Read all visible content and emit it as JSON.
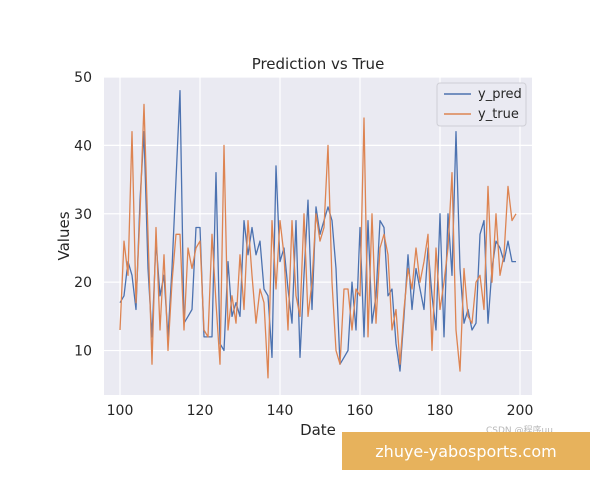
{
  "chart_data": {
    "type": "line",
    "title": "Prediction vs True",
    "xlabel": "Date",
    "ylabel": "Values",
    "xlim": [
      96,
      203
    ],
    "ylim": [
      3.5,
      50
    ],
    "xticks": [
      100,
      120,
      140,
      160,
      180,
      200
    ],
    "yticks": [
      10,
      20,
      30,
      40,
      50
    ],
    "grid": true,
    "legend_position": "top-right",
    "x": [
      100,
      101,
      102,
      103,
      104,
      105,
      106,
      107,
      108,
      109,
      110,
      111,
      112,
      113,
      114,
      115,
      116,
      117,
      118,
      119,
      120,
      121,
      122,
      123,
      124,
      125,
      126,
      127,
      128,
      129,
      130,
      131,
      132,
      133,
      134,
      135,
      136,
      137,
      138,
      139,
      140,
      141,
      142,
      143,
      144,
      145,
      146,
      147,
      148,
      149,
      150,
      151,
      152,
      153,
      154,
      155,
      156,
      157,
      158,
      159,
      160,
      161,
      162,
      163,
      164,
      165,
      166,
      167,
      168,
      169,
      170,
      171,
      172,
      173,
      174,
      175,
      176,
      177,
      178,
      179,
      180,
      181,
      182,
      183,
      184,
      185,
      186,
      187,
      188,
      189,
      190,
      191,
      192,
      193,
      194,
      195,
      196,
      197,
      198,
      199
    ],
    "series": [
      {
        "name": "y_pred",
        "color": "#4c72b0",
        "values": [
          17,
          18,
          23,
          21,
          16,
          32,
          42,
          22,
          12,
          26,
          18,
          21,
          12,
          22,
          35,
          48,
          14,
          15,
          16,
          28,
          28,
          12,
          12,
          12,
          36,
          11,
          10,
          23,
          15,
          17,
          15,
          29,
          24,
          28,
          24,
          26,
          19,
          18,
          9,
          37,
          23,
          25,
          19,
          14,
          29,
          9,
          21,
          32,
          16,
          31,
          27,
          29,
          31,
          29,
          22,
          8,
          9,
          10,
          20,
          13,
          28,
          12,
          29,
          14,
          18,
          29,
          28,
          18,
          19,
          11,
          7,
          15,
          24,
          16,
          22,
          19,
          16,
          25,
          18,
          13,
          30,
          12,
          30,
          21,
          42,
          22,
          14,
          16,
          13,
          14,
          27,
          29,
          14,
          22,
          26,
          25,
          23,
          26,
          23,
          23
        ]
      },
      {
        "name": "y_true",
        "color": "#dd8452",
        "values": [
          13,
          26,
          21,
          42,
          17,
          30,
          46,
          27,
          8,
          28,
          13,
          24,
          10,
          20,
          27,
          27,
          13,
          25,
          22,
          25,
          26,
          13,
          12,
          27,
          17,
          8,
          40,
          13,
          18,
          14,
          24,
          16,
          29,
          21,
          14,
          19,
          17,
          6,
          29,
          19,
          29,
          24,
          13,
          29,
          18,
          15,
          30,
          15,
          20,
          30,
          26,
          28,
          40,
          20,
          10,
          8,
          19,
          19,
          13,
          19,
          18,
          44,
          12,
          30,
          14,
          25,
          27,
          24,
          13,
          16,
          8,
          16,
          22,
          19,
          25,
          20,
          23,
          27,
          10,
          25,
          16,
          20,
          25,
          36,
          13,
          7,
          22,
          15,
          14,
          20,
          21,
          16,
          34,
          20,
          30,
          21,
          24,
          34,
          29,
          30
        ]
      }
    ]
  },
  "watermark": {
    "corner_text": "CSDN @程序uu",
    "banner_text": "zhuye-yabosports.com"
  }
}
